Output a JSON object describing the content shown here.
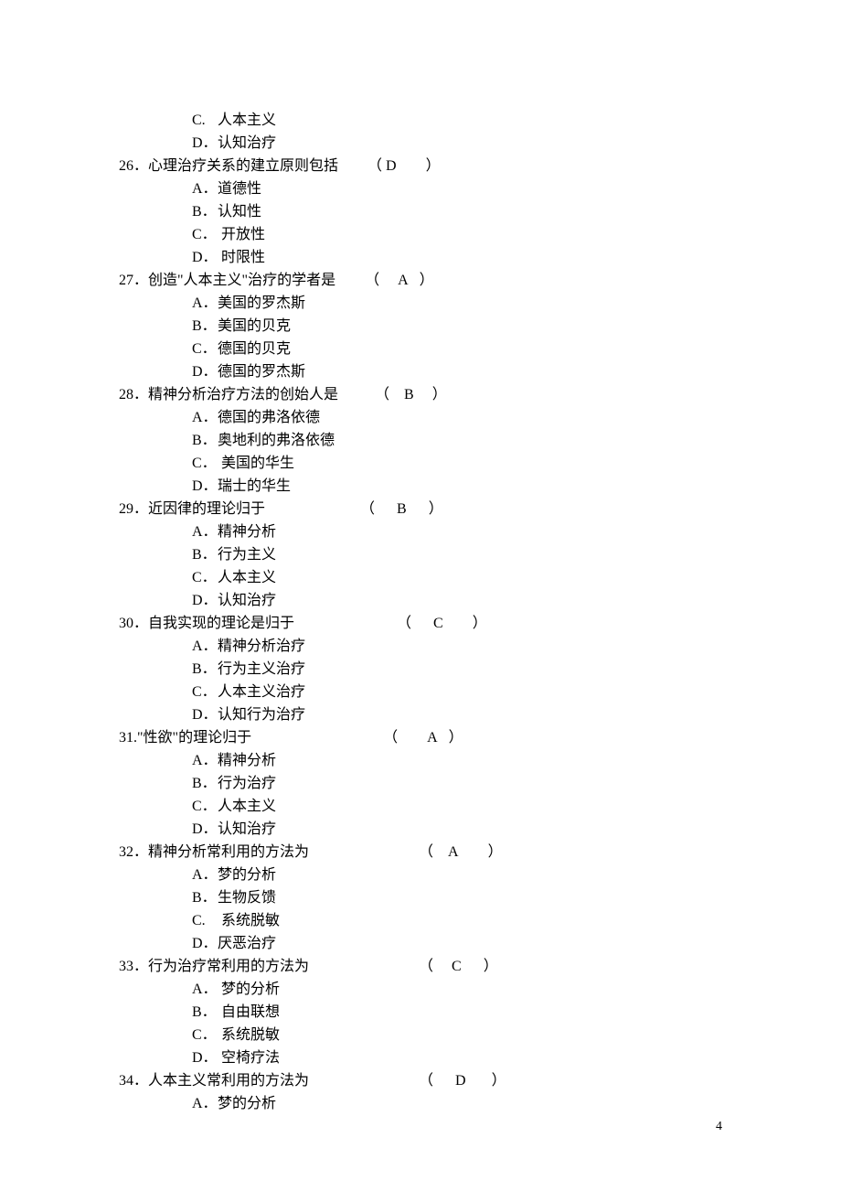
{
  "page_number": "4",
  "orphan_options": [
    {
      "letter": "C.",
      "text": "人本主义"
    },
    {
      "letter": "D．",
      "text": "认知治疗"
    }
  ],
  "questions": [
    {
      "num": "26．",
      "text": "心理治疗关系的建立原则包括",
      "gap": "        ",
      "paren_left": "（ ",
      "answer": "D",
      "answer_gap": "        ",
      "paren_right": "）",
      "options": [
        {
          "letter": "A．",
          "text": "道德性"
        },
        {
          "letter": "B．",
          "text": "认知性"
        },
        {
          "letter": "C．",
          "text": " 开放性"
        },
        {
          "letter": "D．",
          "text": " 时限性"
        }
      ]
    },
    {
      "num": "27．",
      "text": "创造\"人本主义\"治疗的学者是",
      "gap": "        ",
      "paren_left": "（     ",
      "answer": "A",
      "answer_gap": "   ",
      "paren_right": "）",
      "options": [
        {
          "letter": "A．",
          "text": "美国的罗杰斯"
        },
        {
          "letter": "B．",
          "text": "美国的贝克"
        },
        {
          "letter": "C．",
          "text": "德国的贝克"
        },
        {
          "letter": "D．",
          "text": "德国的罗杰斯"
        }
      ]
    },
    {
      "num": "28．",
      "text": "精神分析治疗方法的创始人是",
      "gap": "          ",
      "paren_left": "（    ",
      "answer": "B",
      "answer_gap": "     ",
      "paren_right": "）",
      "options": [
        {
          "letter": "A．",
          "text": "德国的弗洛依德"
        },
        {
          "letter": "B．",
          "text": "奥地利的弗洛依德"
        },
        {
          "letter": "C．",
          "text": " 美国的华生"
        },
        {
          "letter": "D．",
          "text": "瑞士的华生"
        }
      ]
    },
    {
      "num": "29．",
      "text": "近因律的理论归于",
      "gap": "                          ",
      "paren_left": "（      ",
      "answer": "B",
      "answer_gap": "      ",
      "paren_right": "）",
      "options": [
        {
          "letter": "A．",
          "text": "精神分析"
        },
        {
          "letter": "B．",
          "text": "行为主义"
        },
        {
          "letter": "C．",
          "text": "人本主义"
        },
        {
          "letter": "D．",
          "text": "认知治疗"
        }
      ]
    },
    {
      "num": "30．",
      "text": "自我实现的理论是归于",
      "gap": "                            ",
      "paren_left": "（      ",
      "answer": "C",
      "answer_gap": "        ",
      "paren_right": "）",
      "options": [
        {
          "letter": "A．",
          "text": "精神分析治疗"
        },
        {
          "letter": "B．",
          "text": "行为主义治疗"
        },
        {
          "letter": "C．",
          "text": "人本主义治疗"
        },
        {
          "letter": "D．",
          "text": "认知行为治疗"
        }
      ]
    },
    {
      "num": "31.",
      "text": "\"性欲\"的理论归于",
      "gap": "                                    ",
      "paren_left": "（        ",
      "answer": "A",
      "answer_gap": "   ",
      "paren_right": "）",
      "options": [
        {
          "letter": "A．",
          "text": "精神分析"
        },
        {
          "letter": "B．",
          "text": "行为治疗"
        },
        {
          "letter": "C．",
          "text": "人本主义"
        },
        {
          "letter": "D．",
          "text": "认知治疗"
        }
      ]
    },
    {
      "num": "32．",
      "text": "精神分析常利用的方法为",
      "gap": "                              ",
      "paren_left": "（    ",
      "answer": "A",
      "answer_gap": "        ",
      "paren_right": "）",
      "options": [
        {
          "letter": "A．",
          "text": "梦的分析"
        },
        {
          "letter": "B．",
          "text": "生物反馈"
        },
        {
          "letter": "C.",
          "text": " 系统脱敏"
        },
        {
          "letter": "D．",
          "text": "厌恶治疗"
        }
      ]
    },
    {
      "num": "33．",
      "text": "行为治疗常利用的方法为",
      "gap": "                              ",
      "paren_left": "（     ",
      "answer": "C",
      "answer_gap": "      ",
      "paren_right": "）",
      "options": [
        {
          "letter": "A．",
          "text": " 梦的分析"
        },
        {
          "letter": "B．",
          "text": " 自由联想"
        },
        {
          "letter": "C．",
          "text": " 系统脱敏"
        },
        {
          "letter": "D．",
          "text": " 空椅疗法"
        }
      ]
    },
    {
      "num": "34．",
      "text": "人本主义常利用的方法为",
      "gap": "                              ",
      "paren_left": "（      ",
      "answer": "D",
      "answer_gap": "       ",
      "paren_right": "）",
      "options": [
        {
          "letter": "A．",
          "text": "梦的分析"
        }
      ]
    }
  ]
}
